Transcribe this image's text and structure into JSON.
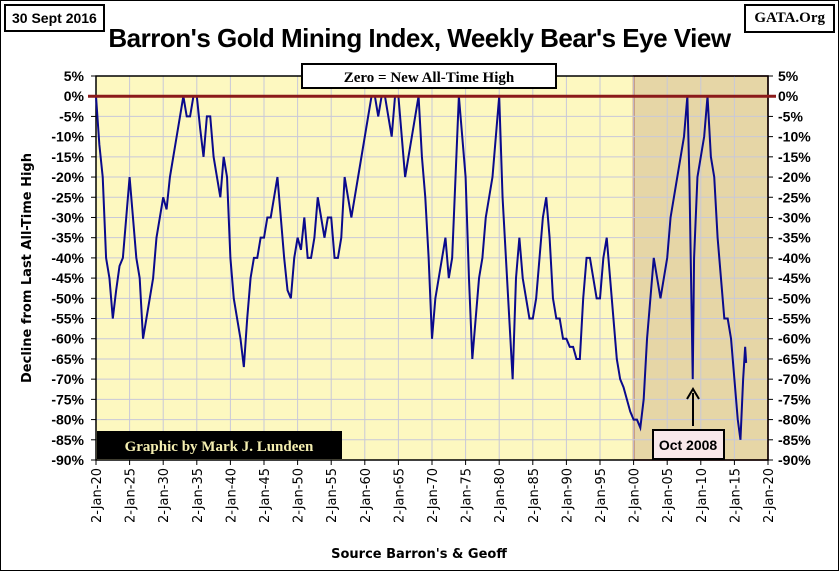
{
  "header": {
    "date": "30 Sept 2016",
    "source_site": "GATA.Org"
  },
  "chart_data": {
    "type": "line",
    "title": "Barron's Gold Mining Index, Weekly Bear's Eye View",
    "ylabel": "Decline from Last All-Time High",
    "xlabel": "Source Barron's & Geoff",
    "ylim": [
      -90,
      5
    ],
    "xlim": [
      1920,
      2020
    ],
    "grid": true,
    "yticks": [
      "5%",
      "0%",
      "-5%",
      "-10%",
      "-15%",
      "-20%",
      "-25%",
      "-30%",
      "-35%",
      "-40%",
      "-45%",
      "-50%",
      "-55%",
      "-60%",
      "-65%",
      "-70%",
      "-75%",
      "-80%",
      "-85%",
      "-90%"
    ],
    "xticks": [
      "2-Jan-20",
      "2-Jan-25",
      "2-Jan-30",
      "2-Jan-35",
      "2-Jan-40",
      "2-Jan-45",
      "2-Jan-50",
      "2-Jan-55",
      "2-Jan-60",
      "2-Jan-65",
      "2-Jan-70",
      "2-Jan-75",
      "2-Jan-80",
      "2-Jan-85",
      "2-Jan-90",
      "2-Jan-95",
      "2-Jan-00",
      "2-Jan-05",
      "2-Jan-10",
      "2-Jan-15",
      "2-Jan-20"
    ],
    "shaded_region": [
      2000,
      2020
    ],
    "annotations": {
      "zero_label": "Zero = New All-Time High",
      "credit": "Graphic by Mark J. Lundeen",
      "event": "Oct 2008"
    },
    "series": [
      {
        "name": "Barron's Gold Mining Index BEV",
        "color": "#0a0a8c",
        "x": [
          1920,
          1920.5,
          1921,
          1921.5,
          1922,
          1922.5,
          1923,
          1923.5,
          1924,
          1924.5,
          1925,
          1925.5,
          1926,
          1926.5,
          1927,
          1927.5,
          1928,
          1928.5,
          1929,
          1929.5,
          1930,
          1930.5,
          1931,
          1931.5,
          1932,
          1932.5,
          1933,
          1933.5,
          1934,
          1934.5,
          1935,
          1935.5,
          1936,
          1936.5,
          1937,
          1937.5,
          1938,
          1938.5,
          1939,
          1939.5,
          1940,
          1940.5,
          1941,
          1941.5,
          1942,
          1942.5,
          1943,
          1943.5,
          1944,
          1944.5,
          1945,
          1945.5,
          1946,
          1946.5,
          1947,
          1947.5,
          1948,
          1948.5,
          1949,
          1949.5,
          1950,
          1950.5,
          1951,
          1951.5,
          1952,
          1952.5,
          1953,
          1953.5,
          1954,
          1954.5,
          1955,
          1955.5,
          1956,
          1956.5,
          1957,
          1957.5,
          1958,
          1958.5,
          1959,
          1959.5,
          1960,
          1960.5,
          1961,
          1961.5,
          1962,
          1962.5,
          1963,
          1963.5,
          1964,
          1964.5,
          1965,
          1965.5,
          1966,
          1966.5,
          1967,
          1967.5,
          1968,
          1968.5,
          1969,
          1969.5,
          1970,
          1970.5,
          1971,
          1971.5,
          1972,
          1972.5,
          1973,
          1973.5,
          1974,
          1974.5,
          1975,
          1975.5,
          1976,
          1976.5,
          1977,
          1977.5,
          1978,
          1978.5,
          1979,
          1979.5,
          1980,
          1980.5,
          1981,
          1981.5,
          1982,
          1982.5,
          1983,
          1983.5,
          1984,
          1984.5,
          1985,
          1985.5,
          1986,
          1986.5,
          1987,
          1987.5,
          1988,
          1988.5,
          1989,
          1989.5,
          1990,
          1990.5,
          1991,
          1991.5,
          1992,
          1992.5,
          1993,
          1993.5,
          1994,
          1994.5,
          1995,
          1995.5,
          1996,
          1996.5,
          1997,
          1997.5,
          1998,
          1998.5,
          1999,
          1999.5,
          2000,
          2000.5,
          2001,
          2001.5,
          2002,
          2002.5,
          2003,
          2003.5,
          2004,
          2004.5,
          2005,
          2005.5,
          2006,
          2006.5,
          2007,
          2007.5,
          2008,
          2008.3,
          2008.8,
          2009,
          2009.5,
          2010,
          2010.5,
          2011,
          2011.5,
          2012,
          2012.5,
          2013,
          2013.5,
          2014,
          2014.5,
          2015,
          2015.5,
          2015.9,
          2016.3,
          2016.6,
          2016.75
        ],
        "y": [
          0,
          -12,
          -20,
          -40,
          -45,
          -55,
          -48,
          -42,
          -40,
          -30,
          -20,
          -30,
          -40,
          -45,
          -60,
          -55,
          -50,
          -45,
          -35,
          -30,
          -25,
          -28,
          -20,
          -15,
          -10,
          -5,
          0,
          -5,
          -5,
          0,
          0,
          -8,
          -15,
          -5,
          -5,
          -15,
          -20,
          -25,
          -15,
          -20,
          -40,
          -50,
          -55,
          -60,
          -67,
          -55,
          -45,
          -40,
          -40,
          -35,
          -35,
          -30,
          -30,
          -25,
          -20,
          -30,
          -40,
          -48,
          -50,
          -40,
          -35,
          -38,
          -30,
          -40,
          -40,
          -35,
          -25,
          -30,
          -35,
          -30,
          -30,
          -40,
          -40,
          -35,
          -20,
          -25,
          -30,
          -25,
          -20,
          -15,
          -10,
          -5,
          0,
          0,
          -5,
          0,
          0,
          -5,
          -10,
          0,
          0,
          -10,
          -20,
          -15,
          -10,
          -5,
          0,
          -15,
          -25,
          -40,
          -60,
          -50,
          -45,
          -40,
          -35,
          -45,
          -40,
          -20,
          0,
          -10,
          -20,
          -45,
          -65,
          -55,
          -45,
          -40,
          -30,
          -25,
          -20,
          -10,
          0,
          -25,
          -40,
          -55,
          -70,
          -45,
          -35,
          -45,
          -50,
          -55,
          -55,
          -50,
          -40,
          -30,
          -25,
          -35,
          -50,
          -55,
          -55,
          -60,
          -60,
          -62,
          -62,
          -65,
          -65,
          -50,
          -40,
          -40,
          -45,
          -50,
          -50,
          -40,
          -35,
          -45,
          -55,
          -65,
          -70,
          -72,
          -75,
          -78,
          -80,
          -80,
          -82,
          -75,
          -60,
          -50,
          -40,
          -45,
          -50,
          -45,
          -40,
          -30,
          -25,
          -20,
          -15,
          -10,
          0,
          -20,
          -70,
          -40,
          -20,
          -15,
          -10,
          0,
          -15,
          -20,
          -35,
          -45,
          -55,
          -55,
          -60,
          -70,
          -80,
          -85,
          -70,
          -62,
          -66
        ]
      }
    ]
  }
}
